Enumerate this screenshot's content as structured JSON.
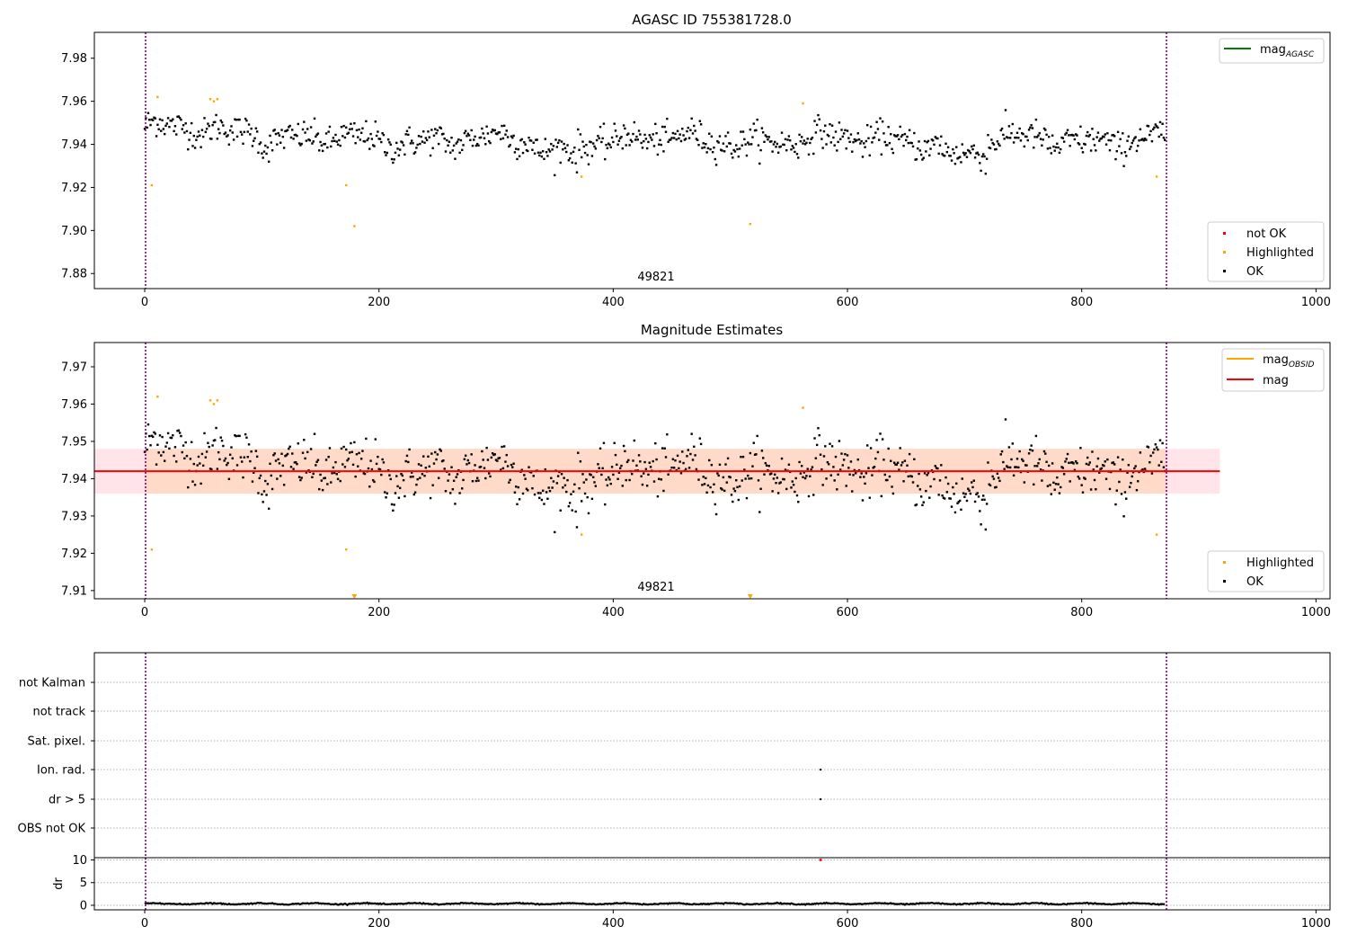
{
  "colors": {
    "ok": "#000000",
    "highlighted": "#ffa500",
    "not_ok": "#ff0000",
    "mag_agasc": "#008000",
    "mag_obsid": "#ffa500",
    "mag": "#ff0000",
    "band_inner": "#ffdac8",
    "band_outer": "#ffe4e9",
    "boundary": "#800080"
  },
  "chart_data": [
    {
      "type": "scatter",
      "title": "AGASC ID 755381728.0",
      "xlabel": "",
      "ylabel": "",
      "xlim": [
        -43,
        1012
      ],
      "ylim": [
        7.873,
        7.992
      ],
      "xticks": [
        "0",
        "200",
        "400",
        "600",
        "800",
        "1000"
      ],
      "yticks": [
        "7.88",
        "7.90",
        "7.92",
        "7.94",
        "7.96",
        "7.98"
      ],
      "grid": false,
      "legend_lines": [
        "mag"
      ],
      "legend_lines_sub": [
        "AGASC"
      ],
      "legend_lines_placement": "top-right",
      "legend_markers": [
        "not OK",
        "Highlighted",
        "OK"
      ],
      "legend_markers_placement": "bottom-right",
      "annotation": "49821",
      "obsid_boundaries_x": [
        0,
        872
      ],
      "series": [
        {
          "name": "OK",
          "kind": "points",
          "description": "~870 per-frame magnitude estimates, mean ≈ 7.942, scatter ≈ 0.006"
        },
        {
          "name": "Highlighted",
          "kind": "points",
          "x": [
            6,
            11,
            56,
            59,
            62,
            172,
            179,
            373,
            517,
            562,
            864
          ],
          "y": [
            7.921,
            7.962,
            7.961,
            7.96,
            7.961,
            7.921,
            7.902,
            7.925,
            7.903,
            7.959,
            7.925
          ]
        },
        {
          "name": "not OK",
          "kind": "points",
          "x": [],
          "y": []
        }
      ]
    },
    {
      "type": "scatter",
      "title": "Magnitude Estimates",
      "xlabel": "",
      "ylabel": "",
      "xlim": [
        -43,
        1012
      ],
      "ylim": [
        7.9078,
        7.9765
      ],
      "xticks": [
        "0",
        "200",
        "400",
        "600",
        "800",
        "1000"
      ],
      "yticks": [
        "7.91",
        "7.92",
        "7.93",
        "7.94",
        "7.95",
        "7.96",
        "7.97"
      ],
      "grid": false,
      "legend_lines": [
        "mag",
        "mag"
      ],
      "legend_lines_sub": [
        "OBSID",
        ""
      ],
      "legend_lines_placement": "top-right",
      "legend_markers": [
        "Highlighted",
        "OK"
      ],
      "legend_markers_placement": "bottom-right",
      "annotation": "49821",
      "obsid_boundaries_x": [
        0,
        872
      ],
      "mag_line": {
        "x": [
          -43,
          918
        ],
        "y": 7.942
      },
      "mag_band": {
        "x": [
          -43,
          918
        ],
        "low": 7.936,
        "high": 7.948
      },
      "offscale_markers_x": [
        179,
        517
      ],
      "series": [
        {
          "name": "OK",
          "kind": "points",
          "description": "same per-frame estimates as upper panel"
        },
        {
          "name": "Highlighted",
          "kind": "points",
          "x": [
            6,
            11,
            56,
            59,
            62,
            172,
            373,
            562,
            864
          ],
          "y": [
            7.921,
            7.962,
            7.961,
            7.96,
            7.961,
            7.921,
            7.925,
            7.959,
            7.925
          ]
        }
      ]
    },
    {
      "type": "scatter",
      "title": "",
      "xlim": [
        -43,
        1012
      ],
      "categories": [
        "not Kalman",
        "not track",
        "Sat. pixel.",
        "Ion. rad.",
        "dr > 5",
        "OBS not OK"
      ],
      "grid": "horizontal dotted",
      "obsid_boundaries_x": [
        0,
        872
      ],
      "series": [
        {
          "name": "Ion. rad.",
          "x": [
            577
          ]
        },
        {
          "name": "dr > 5",
          "x": [
            577
          ]
        }
      ]
    },
    {
      "type": "line",
      "title": "",
      "xlabel": "",
      "ylabel": "dr",
      "xlim": [
        -43,
        1012
      ],
      "ylim": [
        -1,
        10.5
      ],
      "xticks": [
        "0",
        "200",
        "400",
        "600",
        "800",
        "1000"
      ],
      "yticks": [
        "0",
        "5",
        "10"
      ],
      "grid": "horizontal dotted",
      "obsid_boundaries_x": [
        0,
        872
      ],
      "series": [
        {
          "name": "dr",
          "kind": "points",
          "description": "dr ≈ 0.2–0.5 for all frames"
        },
        {
          "name": "dr not OK",
          "kind": "points",
          "x": [
            577
          ],
          "y": [
            10
          ]
        }
      ]
    }
  ]
}
